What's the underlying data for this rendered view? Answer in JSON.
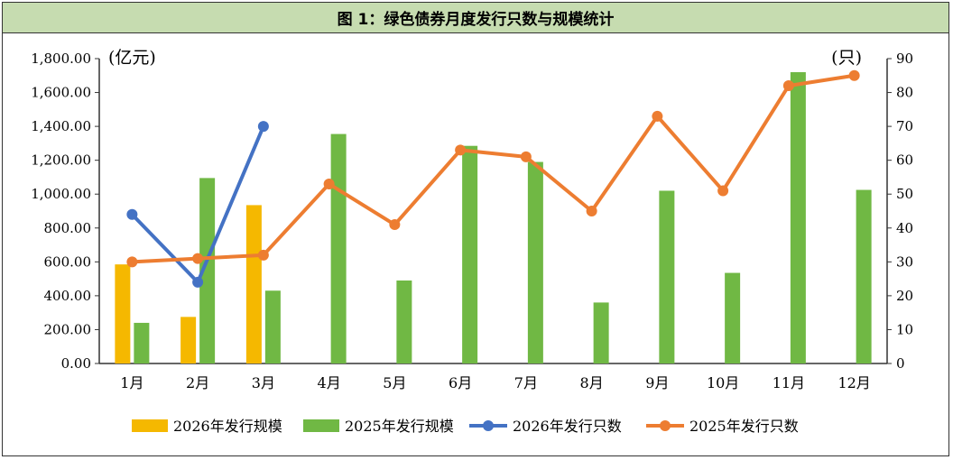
{
  "chart_data": {
    "type": "bar+line",
    "title": "图 1：绿色债券月度发行只数与规模统计",
    "categories": [
      "1月",
      "2月",
      "3月",
      "4月",
      "5月",
      "6月",
      "7月",
      "8月",
      "9月",
      "10月",
      "11月",
      "12月"
    ],
    "left_axis_unit": "(亿元)",
    "right_axis_unit": "(只)",
    "left_ticks": [
      "0.00",
      "200.00",
      "400.00",
      "600.00",
      "800.00",
      "1,000.00",
      "1,200.00",
      "1,400.00",
      "1,600.00",
      "1,800.00"
    ],
    "right_ticks": [
      "0",
      "10",
      "20",
      "30",
      "40",
      "50",
      "60",
      "70",
      "80",
      "90"
    ],
    "ylim_left": [
      0,
      1800
    ],
    "ylim_right": [
      0,
      90
    ],
    "series": [
      {
        "name": "2026年发行规模",
        "kind": "bar",
        "axis": "left",
        "color": "#f5b800",
        "values": [
          585,
          275,
          935,
          null,
          null,
          null,
          null,
          null,
          null,
          null,
          null,
          null
        ]
      },
      {
        "name": "2025年发行规模",
        "kind": "bar",
        "axis": "left",
        "color": "#70b844",
        "values": [
          240,
          1095,
          430,
          1355,
          490,
          1285,
          1190,
          360,
          1020,
          535,
          1720,
          1025
        ]
      },
      {
        "name": "2026年发行只数",
        "kind": "line",
        "axis": "right",
        "color": "#4472c4",
        "values": [
          44,
          24,
          70,
          null,
          null,
          null,
          null,
          null,
          null,
          null,
          null,
          null
        ]
      },
      {
        "name": "2025年发行只数",
        "kind": "line",
        "axis": "right",
        "color": "#ed7d31",
        "values": [
          30,
          31,
          32,
          53,
          41,
          63,
          61,
          45,
          73,
          51,
          82,
          85
        ]
      }
    ],
    "legend_position": "bottom"
  }
}
